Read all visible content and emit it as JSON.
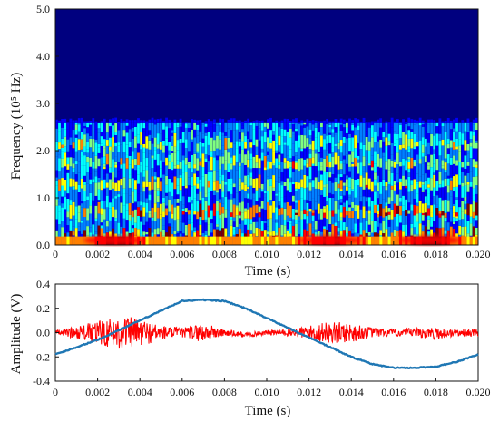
{
  "chart_data": [
    {
      "type": "heatmap",
      "xlabel": "Time (s)",
      "ylabel": "Frequency (10⁵ Hz)",
      "xlim": [
        0,
        0.02
      ],
      "ylim": [
        0,
        5.0
      ],
      "x_ticks": [
        "0",
        "0.002",
        "0.004",
        "0.006",
        "0.008",
        "0.010",
        "0.012",
        "0.014",
        "0.016",
        "0.018",
        "0.020"
      ],
      "y_ticks": [
        "0.0",
        "1.0",
        "2.0",
        "3.0",
        "4.0",
        "5.0"
      ],
      "colormap": [
        "#00007f",
        "#0000ff",
        "#0080ff",
        "#00ffff",
        "#80ff80",
        "#ffff00",
        "#ff8000",
        "#ff0000",
        "#800000"
      ],
      "background_color": "#00007f",
      "activity_upper_limit": 2.6,
      "bands": [
        {
          "frequency": 0.12,
          "intensity": 0.9
        },
        {
          "frequency": 0.62,
          "intensity": 0.7
        },
        {
          "frequency": 1.2,
          "intensity": 0.45
        },
        {
          "frequency": 1.65,
          "intensity": 0.4
        },
        {
          "frequency": 2.05,
          "intensity": 0.35
        }
      ],
      "hotspots": [
        {
          "time": 0.0028,
          "frequency": 0.1
        },
        {
          "time": 0.013,
          "frequency": 0.1
        },
        {
          "time": 0.0177,
          "frequency": 0.1
        }
      ]
    },
    {
      "type": "line",
      "xlabel": "Time (s)",
      "ylabel": "Amplitude (V)",
      "xlim": [
        0,
        0.02
      ],
      "ylim": [
        -0.4,
        0.4
      ],
      "x_ticks": [
        "0",
        "0.002",
        "0.004",
        "0.006",
        "0.008",
        "0.010",
        "0.012",
        "0.014",
        "0.016",
        "0.018",
        "0.020"
      ],
      "y_ticks": [
        "0.4",
        "0.2",
        "0.0",
        "-0.2",
        "-0.4"
      ],
      "series": [
        {
          "color": "#1f77b4",
          "x": [
            0,
            0.001,
            0.002,
            0.003,
            0.004,
            0.005,
            0.006,
            0.007,
            0.008,
            0.009,
            0.01,
            0.011,
            0.012,
            0.013,
            0.014,
            0.015,
            0.016,
            0.017,
            0.018,
            0.019,
            0.02
          ],
          "y": [
            -0.18,
            -0.12,
            -0.06,
            0.02,
            0.1,
            0.18,
            0.26,
            0.27,
            0.26,
            0.2,
            0.12,
            0.04,
            -0.04,
            -0.12,
            -0.2,
            -0.26,
            -0.29,
            -0.29,
            -0.28,
            -0.24,
            -0.18
          ]
        },
        {
          "color": "#ff0000",
          "x": [
            0,
            0.001,
            0.002,
            0.003,
            0.004,
            0.005,
            0.006,
            0.007,
            0.008,
            0.009,
            0.01,
            0.011,
            0.012,
            0.013,
            0.014,
            0.015,
            0.016,
            0.017,
            0.018,
            0.019,
            0.02
          ],
          "y_center": [
            0.0,
            0.0,
            0.0,
            0.0,
            0.0,
            0.0,
            0.0,
            0.0,
            0.0,
            -0.02,
            0.0,
            0.0,
            0.0,
            0.0,
            0.0,
            0.0,
            0.0,
            0.0,
            -0.01,
            0.0,
            0.0
          ],
          "y_spread": [
            0.02,
            0.05,
            0.1,
            0.14,
            0.12,
            0.06,
            0.04,
            0.08,
            0.03,
            0.02,
            0.02,
            0.03,
            0.06,
            0.09,
            0.08,
            0.04,
            0.03,
            0.04,
            0.05,
            0.03,
            0.03
          ]
        }
      ]
    }
  ]
}
